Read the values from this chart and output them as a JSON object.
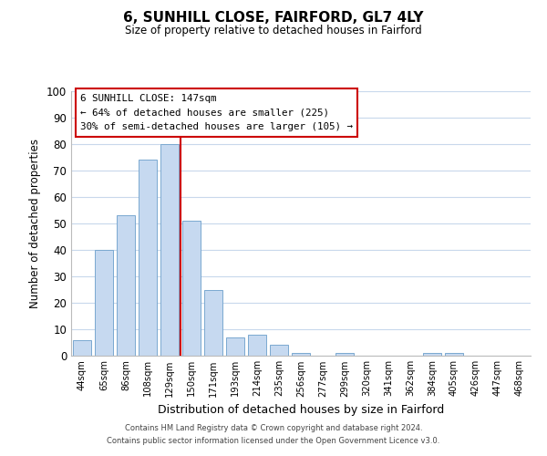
{
  "title1": "6, SUNHILL CLOSE, FAIRFORD, GL7 4LY",
  "title2": "Size of property relative to detached houses in Fairford",
  "xlabel": "Distribution of detached houses by size in Fairford",
  "ylabel": "Number of detached properties",
  "bar_labels": [
    "44sqm",
    "65sqm",
    "86sqm",
    "108sqm",
    "129sqm",
    "150sqm",
    "171sqm",
    "193sqm",
    "214sqm",
    "235sqm",
    "256sqm",
    "277sqm",
    "299sqm",
    "320sqm",
    "341sqm",
    "362sqm",
    "384sqm",
    "405sqm",
    "426sqm",
    "447sqm",
    "468sqm"
  ],
  "bar_values": [
    6,
    40,
    53,
    74,
    80,
    51,
    25,
    7,
    8,
    4,
    1,
    0,
    1,
    0,
    0,
    0,
    1,
    1,
    0,
    0,
    0
  ],
  "bar_color": "#c6d9f0",
  "bar_edge_color": "#7aa8d0",
  "vline_color": "#cc0000",
  "vline_index": 5,
  "ylim": [
    0,
    100
  ],
  "annotation_title": "6 SUNHILL CLOSE: 147sqm",
  "annotation_line1": "← 64% of detached houses are smaller (225)",
  "annotation_line2": "30% of semi-detached houses are larger (105) →",
  "footer1": "Contains HM Land Registry data © Crown copyright and database right 2024.",
  "footer2": "Contains public sector information licensed under the Open Government Licence v3.0.",
  "background_color": "#ffffff",
  "grid_color": "#c8d8ec"
}
